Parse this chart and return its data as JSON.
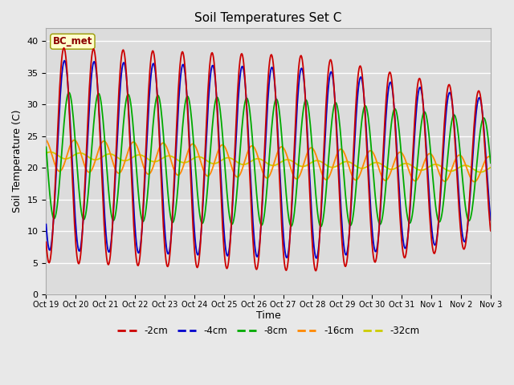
{
  "title": "Soil Temperatures Set C",
  "xlabel": "Time",
  "ylabel": "Soil Temperature (C)",
  "xlim": [
    0,
    15
  ],
  "ylim": [
    0,
    42
  ],
  "yticks": [
    0,
    5,
    10,
    15,
    20,
    25,
    30,
    35,
    40
  ],
  "xtick_labels": [
    "Oct 19",
    "Oct 20",
    "Oct 21",
    "Oct 22",
    "Oct 23",
    "Oct 24",
    "Oct 25",
    "Oct 26",
    "Oct 27",
    "Oct 28",
    "Oct 29",
    "Oct 30",
    "Oct 31",
    "Nov 1",
    "Nov 2",
    "Nov 3"
  ],
  "annotation_text": "BC_met",
  "annotation_bg": "#ffffcc",
  "annotation_fg": "#8b0000",
  "annotation_edge": "#999900",
  "bg_color": "#e8e8e8",
  "plot_bg": "#dcdcdc",
  "grid_color": "#ffffff",
  "series": {
    "-2cm": {
      "color": "#cc0000",
      "lw": 1.3
    },
    "-4cm": {
      "color": "#0000cc",
      "lw": 1.3
    },
    "-8cm": {
      "color": "#00aa00",
      "lw": 1.3
    },
    "-16cm": {
      "color": "#ff8800",
      "lw": 1.3
    },
    "-32cm": {
      "color": "#cccc00",
      "lw": 1.3
    }
  },
  "legend_order": [
    "-2cm",
    "-4cm",
    "-8cm",
    "-16cm",
    "-32cm"
  ]
}
